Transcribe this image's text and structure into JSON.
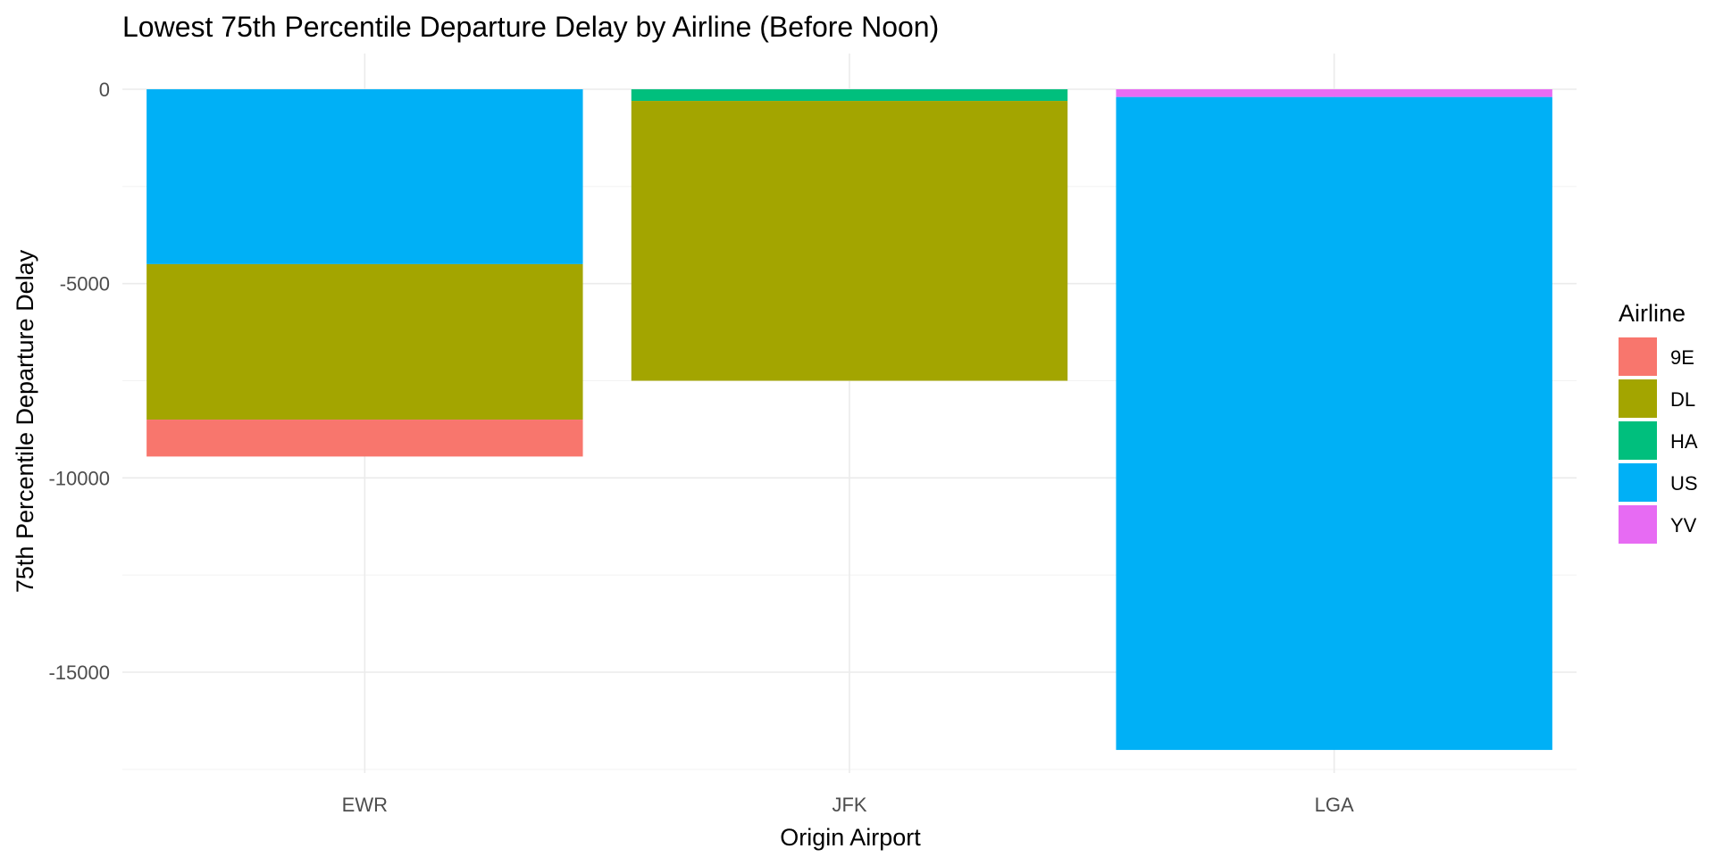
{
  "chart_data": {
    "type": "bar",
    "stacked": true,
    "title": "Lowest 75th Percentile Departure Delay by Airline (Before Noon)",
    "xlabel": "Origin Airport",
    "ylabel": "75th Percentile Departure Delay",
    "categories": [
      "EWR",
      "JFK",
      "LGA"
    ],
    "ylim": [
      -17500,
      0
    ],
    "yticks": [
      0,
      -5000,
      -10000,
      -15000
    ],
    "ytick_labels": [
      "0",
      "-5000",
      "-10000",
      "-15000"
    ],
    "grid": true,
    "legend": {
      "title": "Airline",
      "position": "right"
    },
    "series": [
      {
        "name": "9E",
        "color": "#F8766D",
        "values": [
          -950,
          0,
          0
        ]
      },
      {
        "name": "DL",
        "color": "#A3A500",
        "values": [
          -4000,
          -7200,
          0
        ]
      },
      {
        "name": "HA",
        "color": "#00BF7D",
        "values": [
          0,
          -300,
          0
        ]
      },
      {
        "name": "US",
        "color": "#00B0F6",
        "values": [
          -4500,
          0,
          -16800
        ]
      },
      {
        "name": "YV",
        "color": "#E76BF3",
        "values": [
          0,
          0,
          -200
        ]
      }
    ],
    "stack_order": [
      "YV",
      "HA",
      "US",
      "DL",
      "9E"
    ]
  }
}
